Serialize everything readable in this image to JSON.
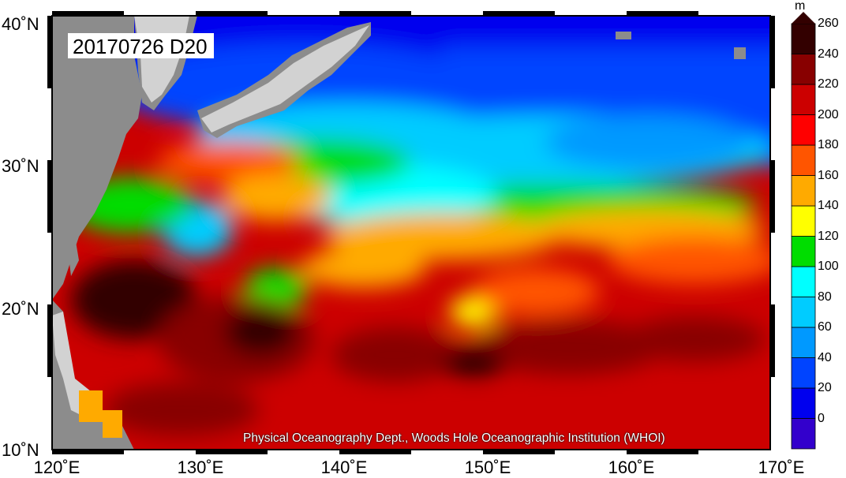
{
  "title": "20170726 D20",
  "credit": "Physical Oceanography Dept., Woods Hole Oceanographic Institution (WHOI)",
  "lon_labels": [
    "120˚E",
    "130˚E",
    "140˚E",
    "150˚E",
    "160˚E",
    "170˚E"
  ],
  "lat_labels": [
    "40˚N",
    "30˚N",
    "20˚N",
    "10˚N"
  ],
  "colorbar": {
    "unit": "m",
    "ticks": [
      "260",
      "240",
      "220",
      "200",
      "180",
      "160",
      "140",
      "120",
      "100",
      "80",
      "60",
      "40",
      "20",
      "0"
    ],
    "colors": [
      "#3300cc",
      "#0000ee",
      "#0044ff",
      "#0099ff",
      "#00ccff",
      "#00ffff",
      "#00dd00",
      "#ffff00",
      "#ffaa00",
      "#ff5500",
      "#ff0000",
      "#cc0000",
      "#880000",
      "#330000"
    ]
  },
  "land_color": "#8c8c8c",
  "chart_data": {
    "type": "heatmap",
    "title": "20170726 D20",
    "x_range_deg_e": [
      120,
      170
    ],
    "y_range_deg_n": [
      10,
      40
    ],
    "value_unit": "m",
    "value_range": [
      0,
      260
    ],
    "level_step": 20
  }
}
